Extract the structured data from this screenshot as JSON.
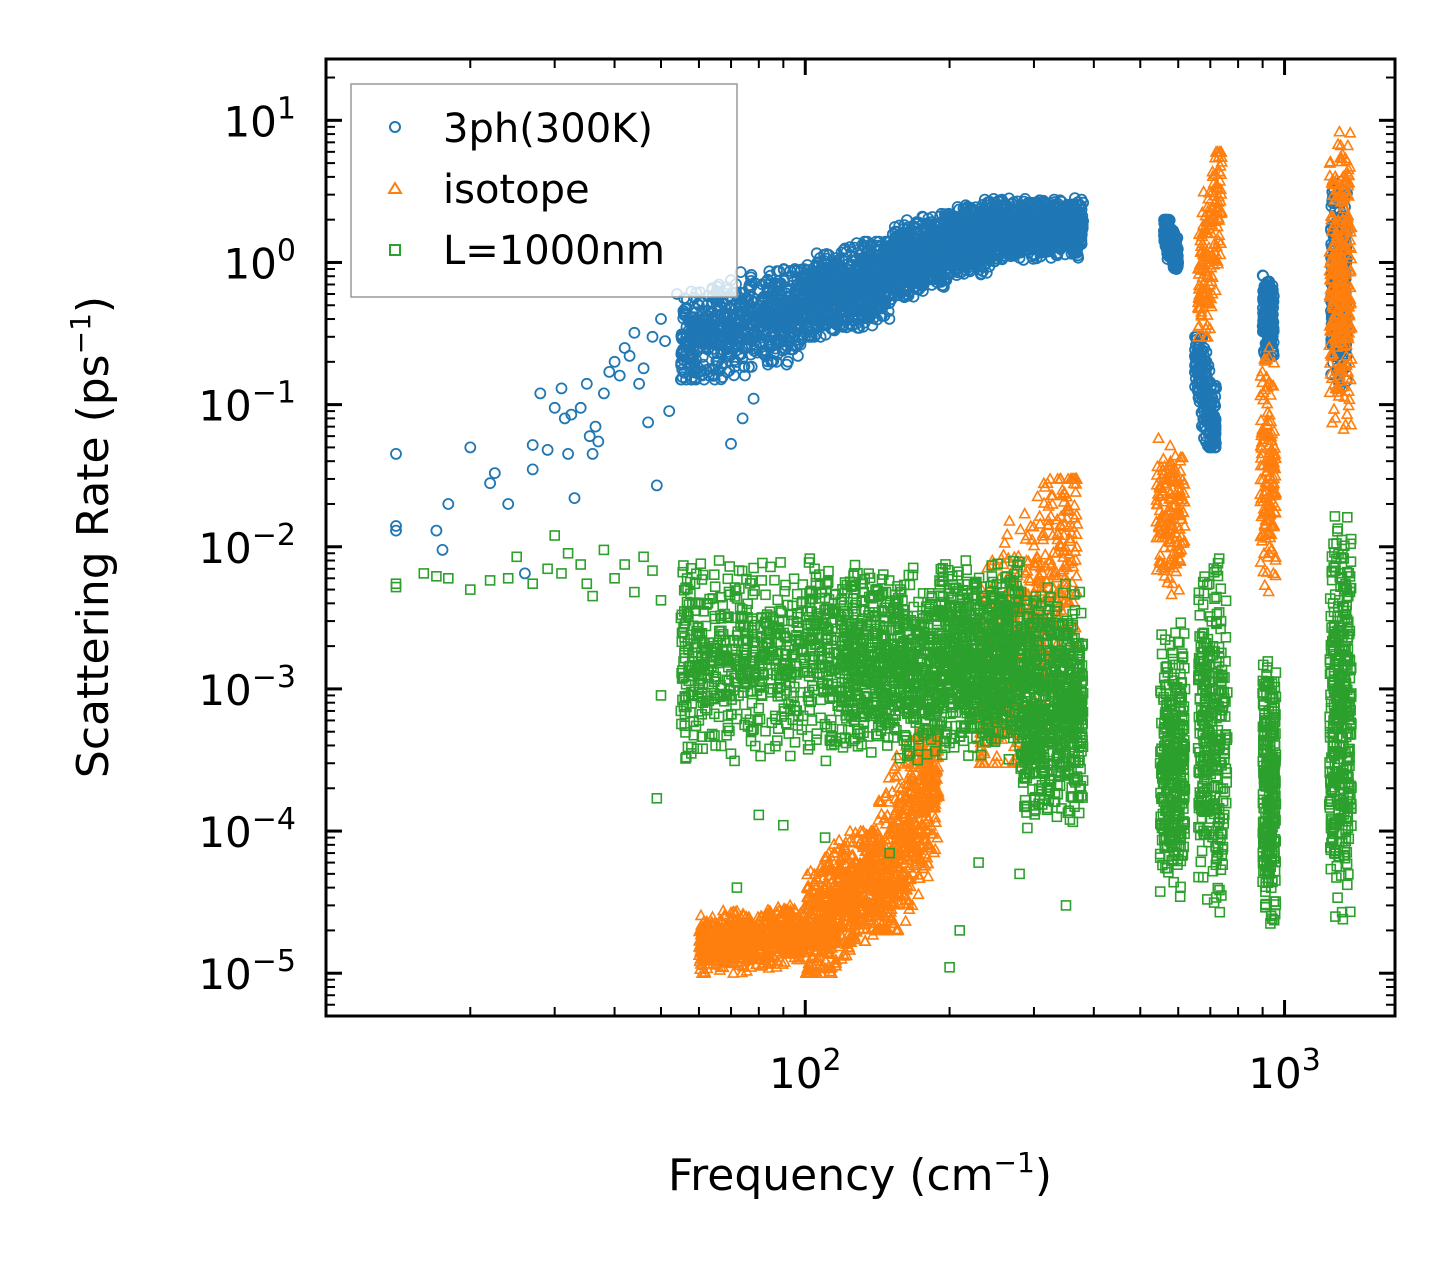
{
  "chart_data": {
    "type": "scatter",
    "title": "",
    "xlabel": "Frequency (cm",
    "xlabel_sup": "−1",
    "xlabel_end": ")",
    "ylabel": "Scattering Rate (ps",
    "ylabel_sup": "−1",
    "ylabel_end": ")",
    "xscale": "log",
    "yscale": "log",
    "xlim": [
      10,
      1700
    ],
    "ylim": [
      5e-06,
      27
    ],
    "x_ticks": [
      {
        "base": "10",
        "exp": "2",
        "value": 100
      },
      {
        "base": "10",
        "exp": "3",
        "value": 1000
      }
    ],
    "y_ticks": [
      {
        "base": "10",
        "exp": "1",
        "value": 10
      },
      {
        "base": "10",
        "exp": "0",
        "value": 1
      },
      {
        "base": "10",
        "exp": "−1",
        "value": 0.1
      },
      {
        "base": "10",
        "exp": "−2",
        "value": 0.01
      },
      {
        "base": "10",
        "exp": "−3",
        "value": 0.001
      },
      {
        "base": "10",
        "exp": "−4",
        "value": 0.0001
      },
      {
        "base": "10",
        "exp": "−5",
        "value": 1e-05
      }
    ],
    "legend_position": "top-left",
    "series": [
      {
        "name": "3ph(300K)",
        "marker": "circle",
        "color": "#1f77b4",
        "points": [
          [
            14,
            0.045
          ],
          [
            14,
            0.014
          ],
          [
            14,
            0.013
          ],
          [
            17,
            0.013
          ],
          [
            17.5,
            0.0095
          ],
          [
            18,
            0.02
          ],
          [
            20,
            0.05
          ],
          [
            22,
            0.028
          ],
          [
            22.5,
            0.033
          ],
          [
            24,
            0.02
          ],
          [
            26,
            0.0065
          ],
          [
            27,
            0.035
          ],
          [
            27,
            0.052
          ],
          [
            28,
            0.12
          ],
          [
            29,
            0.048
          ],
          [
            30,
            0.095
          ],
          [
            31,
            0.13
          ],
          [
            31.5,
            0.08
          ],
          [
            32,
            0.045
          ],
          [
            32.5,
            0.085
          ],
          [
            33,
            0.022
          ],
          [
            34,
            0.095
          ],
          [
            35,
            0.14
          ],
          [
            35.5,
            0.06
          ],
          [
            36,
            0.045
          ],
          [
            36.5,
            0.07
          ],
          [
            37,
            0.055
          ],
          [
            38,
            0.12
          ],
          [
            39,
            0.17
          ],
          [
            40,
            0.2
          ],
          [
            41,
            0.16
          ],
          [
            42,
            0.25
          ],
          [
            43,
            0.22
          ],
          [
            44,
            0.32
          ],
          [
            45,
            0.14
          ],
          [
            46,
            0.18
          ],
          [
            47,
            0.075
          ],
          [
            48,
            0.3
          ],
          [
            49,
            0.027
          ],
          [
            50,
            0.4
          ],
          [
            51,
            0.28
          ],
          [
            52,
            0.09
          ],
          [
            54,
            0.6
          ],
          [
            56,
            0.45
          ],
          [
            58,
            0.22
          ],
          [
            60,
            0.5
          ],
          [
            62,
            0.35
          ],
          [
            64,
            0.66
          ],
          [
            66,
            0.7
          ],
          [
            70,
            0.053
          ],
          [
            70,
            0.75
          ],
          [
            74,
            0.08
          ],
          [
            78,
            0.11
          ]
        ],
        "clusters": [
          {
            "x": [
              55,
              100
            ],
            "y": [
              0.15,
              0.9
            ],
            "n": 700,
            "trend": 1.2
          },
          {
            "x": [
              100,
              150
            ],
            "y": [
              0.3,
              1.4
            ],
            "n": 700,
            "trend": 1.1
          },
          {
            "x": [
              150,
              200
            ],
            "y": [
              0.55,
              2.2
            ],
            "n": 650,
            "trend": 1.0
          },
          {
            "x": [
              200,
              260
            ],
            "y": [
              0.8,
              2.8
            ],
            "n": 650,
            "trend": 0.6
          },
          {
            "x": [
              260,
              380
            ],
            "y": [
              1.0,
              3.0
            ],
            "n": 700,
            "trend": 0.4
          },
          {
            "x": [
              560,
              600
            ],
            "y": [
              0.9,
              2.0
            ],
            "n": 180,
            "trend": -2.5
          },
          {
            "x": [
              650,
              720
            ],
            "y": [
              0.05,
              0.3
            ],
            "n": 200,
            "trend": -3.0
          },
          {
            "x": [
              900,
              950
            ],
            "y": [
              0.2,
              0.9
            ],
            "n": 180,
            "trend": 0
          },
          {
            "x": [
              1250,
              1350
            ],
            "y": [
              0.12,
              4.0
            ],
            "n": 320,
            "trend": 0
          }
        ]
      },
      {
        "name": "isotope",
        "marker": "triangle",
        "color": "#ff7f0e",
        "points": [],
        "clusters": [
          {
            "x": [
              60,
              100
            ],
            "y": [
              1e-05,
              3e-05
            ],
            "n": 650,
            "trend": 0.8
          },
          {
            "x": [
              100,
              140
            ],
            "y": [
              1e-05,
              0.0001
            ],
            "n": 650,
            "trend": 1.8
          },
          {
            "x": [
              140,
              190
            ],
            "y": [
              2e-05,
              0.0005
            ],
            "n": 600,
            "trend": 2.6
          },
          {
            "x": [
              230,
              370
            ],
            "y": [
              0.0003,
              0.03
            ],
            "n": 500,
            "trend": 2.5
          },
          {
            "x": [
              540,
              620
            ],
            "y": [
              0.004,
              0.08
            ],
            "n": 160,
            "trend": 0
          },
          {
            "x": [
              660,
              740
            ],
            "y": [
              0.3,
              6.0
            ],
            "n": 160,
            "trend": 2.5
          },
          {
            "x": [
              890,
              960
            ],
            "y": [
              0.004,
              0.3
            ],
            "n": 160,
            "trend": 0
          },
          {
            "x": [
              1240,
              1380
            ],
            "y": [
              0.06,
              12.0
            ],
            "n": 300,
            "trend": 0
          }
        ]
      },
      {
        "name": "L=1000nm",
        "marker": "square",
        "color": "#2ca02c",
        "points": [
          [
            14,
            0.0052
          ],
          [
            14,
            0.0055
          ],
          [
            16,
            0.0065
          ],
          [
            17,
            0.0062
          ],
          [
            18,
            0.006
          ],
          [
            20,
            0.005
          ],
          [
            22,
            0.0058
          ],
          [
            24,
            0.006
          ],
          [
            25,
            0.0085
          ],
          [
            27,
            0.0055
          ],
          [
            29,
            0.007
          ],
          [
            30,
            0.012
          ],
          [
            31,
            0.0065
          ],
          [
            32,
            0.009
          ],
          [
            34,
            0.0075
          ],
          [
            35,
            0.0055
          ],
          [
            36,
            0.0045
          ],
          [
            38,
            0.0095
          ],
          [
            40,
            0.006
          ],
          [
            42,
            0.0075
          ],
          [
            44,
            0.0048
          ],
          [
            46,
            0.0085
          ],
          [
            48,
            0.0068
          ],
          [
            50,
            0.0042
          ],
          [
            49,
            0.00017
          ],
          [
            50,
            0.0009
          ],
          [
            55,
            0.0007
          ],
          [
            60,
            0.0006
          ],
          [
            65,
            0.0004
          ],
          [
            70,
            0.00035
          ],
          [
            72,
            4e-05
          ],
          [
            80,
            0.00013
          ],
          [
            90,
            0.00011
          ],
          [
            110,
            9e-05
          ],
          [
            150,
            7e-05
          ],
          [
            200,
            1.1e-05
          ],
          [
            210,
            2e-05
          ],
          [
            230,
            6e-05
          ],
          [
            280,
            5e-05
          ],
          [
            350,
            3e-05
          ]
        ],
        "clusters": [
          {
            "x": [
              55,
              120
            ],
            "y": [
              0.0003,
              0.009
            ],
            "n": 700,
            "trend": 0
          },
          {
            "x": [
              120,
              190
            ],
            "y": [
              0.0003,
              0.008
            ],
            "n": 700,
            "trend": 0
          },
          {
            "x": [
              190,
              280
            ],
            "y": [
              0.0003,
              0.009
            ],
            "n": 800,
            "trend": 0
          },
          {
            "x": [
              280,
              380
            ],
            "y": [
              0.0001,
              0.006
            ],
            "n": 700,
            "trend": 0
          },
          {
            "x": [
              550,
              620
            ],
            "y": [
              3e-05,
              0.003
            ],
            "n": 320,
            "trend": 0
          },
          {
            "x": [
              660,
              760
            ],
            "y": [
              2e-05,
              0.01
            ],
            "n": 320,
            "trend": 0
          },
          {
            "x": [
              900,
              960
            ],
            "y": [
              2e-05,
              0.002
            ],
            "n": 280,
            "trend": 0
          },
          {
            "x": [
              1240,
              1380
            ],
            "y": [
              2e-05,
              0.02
            ],
            "n": 380,
            "trend": 0
          }
        ]
      }
    ]
  }
}
